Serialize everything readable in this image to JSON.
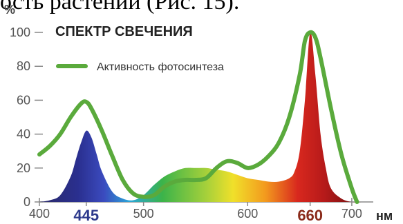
{
  "top_text": "ость растений (Рис. 15).",
  "chart_data": {
    "type": "area",
    "title": "СПЕКТР СВЕЧЕНИЯ",
    "ylabel": "%",
    "xlabel": "нм",
    "ylim": [
      0,
      100
    ],
    "xlim": [
      400,
      710
    ],
    "y_ticks": [
      0,
      20,
      40,
      60,
      80,
      100
    ],
    "x_ticks": [
      {
        "value": 400,
        "label": "400",
        "style": "normal"
      },
      {
        "value": 445,
        "label": "445",
        "style": "blue"
      },
      {
        "value": 500,
        "label": "500",
        "style": "normal"
      },
      {
        "value": 600,
        "label": "600",
        "style": "normal"
      },
      {
        "value": 660,
        "label": "660",
        "style": "red"
      },
      {
        "value": 700,
        "label": "700",
        "style": "normal"
      }
    ],
    "legend_position": "top-left",
    "series": [
      {
        "kind": "spectrum",
        "color_map": "wavelength",
        "x": [
          400,
          410,
          420,
          430,
          435,
          440,
          445,
          450,
          455,
          460,
          470,
          480,
          490,
          500,
          510,
          520,
          530,
          540,
          550,
          560,
          570,
          580,
          590,
          600,
          610,
          620,
          630,
          640,
          645,
          650,
          655,
          660,
          665,
          670,
          675,
          680,
          690,
          700,
          710
        ],
        "values": [
          0,
          1,
          4,
          15,
          25,
          35,
          42,
          38,
          28,
          18,
          6,
          2,
          1,
          4,
          10,
          15,
          18,
          20,
          20,
          20,
          19,
          18,
          16,
          14,
          13,
          12,
          12,
          14,
          18,
          30,
          60,
          100,
          75,
          40,
          20,
          8,
          2,
          0,
          0
        ]
      },
      {
        "kind": "line",
        "name": "Активность фотосинтеза",
        "color": "#5aaa3c",
        "x": [
          400,
          410,
          420,
          430,
          440,
          445,
          450,
          460,
          470,
          480,
          490,
          500,
          510,
          520,
          530,
          540,
          550,
          560,
          570,
          580,
          590,
          600,
          610,
          620,
          630,
          640,
          650,
          655,
          660,
          665,
          670,
          680,
          690,
          700,
          705
        ],
        "values": [
          28,
          33,
          40,
          50,
          58,
          59,
          55,
          42,
          27,
          13,
          5,
          3,
          4,
          9,
          12,
          13,
          13,
          14,
          20,
          24,
          23,
          20,
          22,
          27,
          35,
          50,
          75,
          95,
          100,
          97,
          85,
          55,
          28,
          8,
          0
        ]
      }
    ]
  }
}
